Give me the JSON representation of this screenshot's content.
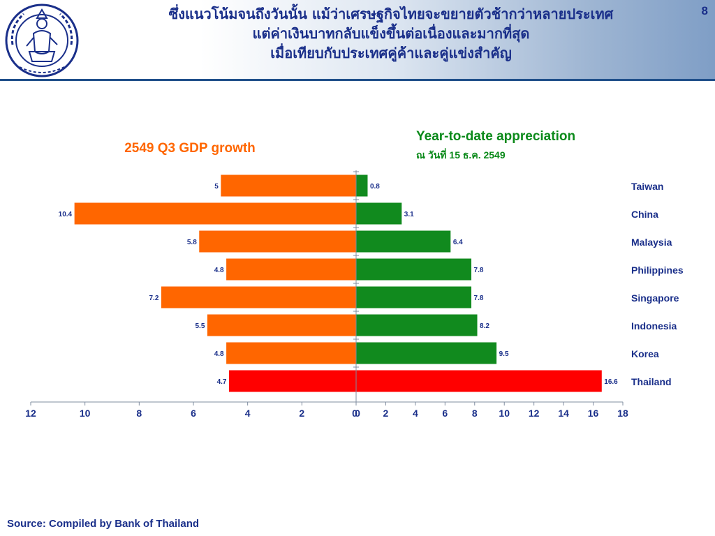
{
  "header": {
    "page_number": "8",
    "title_lines": [
      "ซึ่งแนวโน้มจนถึงวันนั้น แม้ว่าเศรษฐกิจไทยจะขยายตัวช้ากว่าหลายประเทศ",
      "แต่ค่าเงินบาทกลับแข็งขึ้นต่อเนื่องและมากที่สุด",
      "เมื่อเทียบกับประเทศคู่ค้าและคู่แข่งสำคัญ"
    ]
  },
  "footer": {
    "source": "Source: Compiled by Bank of Thailand"
  },
  "colors": {
    "gdp_bar": "#ff6600",
    "appreciation_bar": "#118a1e",
    "highlight_bar": "#ff0000",
    "gdp_title": "#ff6600",
    "appreciation_title": "#0b8a1a",
    "axis_text": "#1a2f8a",
    "country_text": "#1a2f8a"
  },
  "chart_data": [
    {
      "type": "bar",
      "orientation": "horizontal",
      "direction": "leftward",
      "title": "2549 Q3 GDP growth",
      "categories": [
        "Taiwan",
        "China",
        "Malaysia",
        "Philippines",
        "Singapore",
        "Indonesia",
        "Korea",
        "Thailand"
      ],
      "values": [
        5,
        10.4,
        5.8,
        4.8,
        7.2,
        5.5,
        4.8,
        4.7
      ],
      "data_labels": [
        "5",
        "10.4",
        "5.8",
        "4.8",
        "7.2",
        "5.5",
        "4.8",
        "4.7"
      ],
      "highlight_category": "Thailand",
      "xlim": [
        0,
        12
      ],
      "x_ticks": [
        "0",
        "2",
        "4",
        "6",
        "8",
        "10",
        "12"
      ]
    },
    {
      "type": "bar",
      "orientation": "horizontal",
      "title": "Year-to-date appreciation",
      "subtitle": "ณ วันที่ 15 ธ.ค. 2549",
      "categories": [
        "Taiwan",
        "China",
        "Malaysia",
        "Philippines",
        "Singapore",
        "Indonesia",
        "Korea",
        "Thailand"
      ],
      "values": [
        0.8,
        3.1,
        6.4,
        7.8,
        7.8,
        8.2,
        9.5,
        16.6
      ],
      "data_labels": [
        "0.8",
        "3.1",
        "6.4",
        "7.8",
        "7.8",
        "8.2",
        "9.5",
        "16.6"
      ],
      "highlight_category": "Thailand",
      "xlim": [
        0,
        18
      ],
      "x_ticks": [
        "0",
        "2",
        "4",
        "6",
        "8",
        "10",
        "12",
        "14",
        "16",
        "18"
      ]
    }
  ]
}
